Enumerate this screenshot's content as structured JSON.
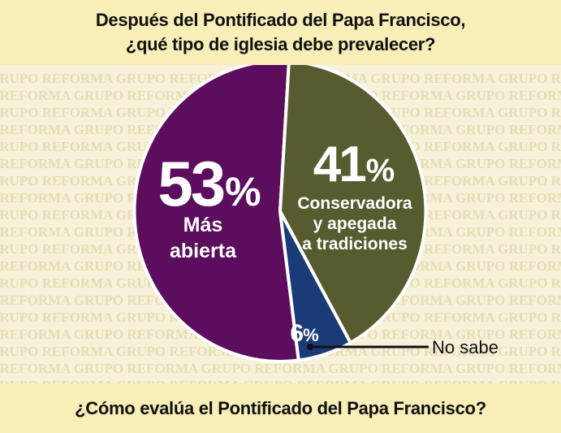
{
  "header": {
    "title_line1": "Después del Pontificado del Papa Francisco,",
    "title_line2": "¿qué tipo de iglesia debe prevalecer?"
  },
  "watermark": "GRUPO REFORMA",
  "footer": {
    "text": "¿Cómo evalúa el Pontificado del Papa Francisco?"
  },
  "colors": {
    "mas_abierta": "#5c0d5e",
    "conservadora": "#585b2f",
    "no_sabe": "#1a3a78"
  },
  "chart_data": {
    "type": "pie",
    "title": "Después del Pontificado del Papa Francisco, ¿qué tipo de iglesia debe prevalecer?",
    "slices": [
      {
        "value": 53,
        "value_label": "53",
        "unit": "%",
        "label": "Más abierta",
        "label_lines": [
          "Más",
          "abierta"
        ]
      },
      {
        "value": 41,
        "value_label": "41",
        "unit": "%",
        "label": "Conservadora y apegada a tradiciones",
        "label_lines": [
          "Conservadora",
          "y apegada",
          "a tradiciones"
        ]
      },
      {
        "value": 6,
        "value_label": "6",
        "unit": "%",
        "label": "No sabe",
        "label_lines": [
          "No sabe"
        ]
      }
    ]
  }
}
